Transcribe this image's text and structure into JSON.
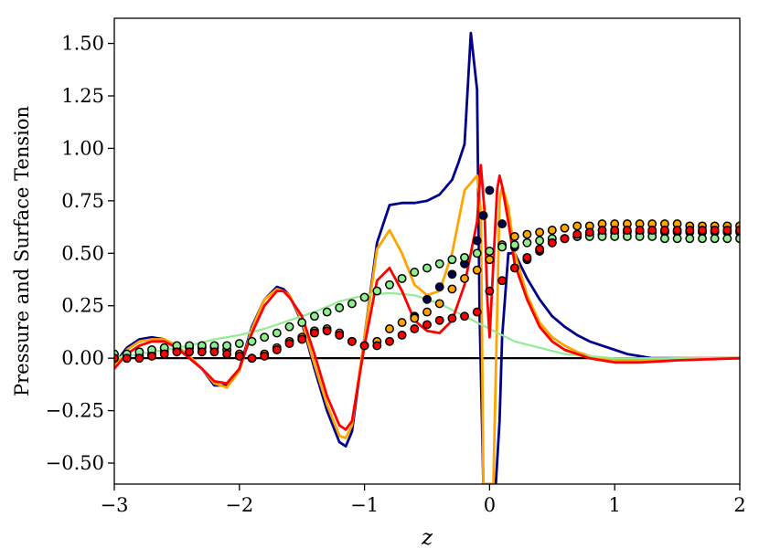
{
  "chart_data": {
    "type": "line",
    "xlabel": "z",
    "ylabel": "Pressure and Surface Tension",
    "xlim": [
      -3,
      2
    ],
    "ylim": [
      -0.6,
      1.62
    ],
    "xticks": [
      -3,
      -2,
      -1,
      0,
      1,
      2
    ],
    "xtick_labels": [
      "−3",
      "−2",
      "−1",
      "0",
      "1",
      "2"
    ],
    "yticks": [
      -0.5,
      -0.25,
      0,
      0.25,
      0.5,
      0.75,
      1.0,
      1.25,
      1.5
    ],
    "ytick_labels": [
      "−0.50",
      "−0.25",
      "0.00",
      "0.25",
      "0.50",
      "0.75",
      "1.00",
      "1.25",
      "1.50"
    ],
    "grid": false,
    "zero_line": {
      "y": 0,
      "color": "#000000"
    },
    "line_series": [
      {
        "color": "#00008b",
        "x": [
          -3.0,
          -2.9,
          -2.8,
          -2.7,
          -2.6,
          -2.5,
          -2.4,
          -2.3,
          -2.2,
          -2.1,
          -2.0,
          -1.9,
          -1.8,
          -1.7,
          -1.65,
          -1.6,
          -1.5,
          -1.4,
          -1.3,
          -1.2,
          -1.15,
          -1.1,
          -1.0,
          -0.9,
          -0.8,
          -0.7,
          -0.6,
          -0.5,
          -0.4,
          -0.3,
          -0.25,
          -0.2,
          -0.15,
          -0.1,
          -0.08,
          -0.05,
          0.0,
          0.03,
          0.05,
          0.08,
          0.1,
          0.15,
          0.2,
          0.3,
          0.4,
          0.5,
          0.6,
          0.7,
          0.8,
          0.9,
          1.0,
          1.1,
          1.2,
          1.3,
          1.4,
          1.5,
          2.0
        ],
        "y": [
          -0.03,
          0.05,
          0.09,
          0.1,
          0.09,
          0.05,
          0.0,
          -0.05,
          -0.13,
          -0.13,
          -0.05,
          0.15,
          0.28,
          0.34,
          0.33,
          0.3,
          0.17,
          -0.05,
          -0.25,
          -0.4,
          -0.42,
          -0.35,
          0.1,
          0.55,
          0.73,
          0.74,
          0.74,
          0.75,
          0.78,
          0.85,
          0.93,
          1.02,
          1.55,
          1.28,
          0.2,
          -0.6,
          -0.6,
          -0.6,
          -0.6,
          -0.3,
          0.1,
          0.5,
          0.5,
          0.38,
          0.28,
          0.2,
          0.15,
          0.11,
          0.08,
          0.06,
          0.04,
          0.02,
          0.01,
          0.0,
          0.0,
          0.0,
          0.0
        ]
      },
      {
        "color": "#ffa500",
        "x": [
          -3.0,
          -2.9,
          -2.8,
          -2.7,
          -2.6,
          -2.5,
          -2.4,
          -2.3,
          -2.2,
          -2.1,
          -2.0,
          -1.9,
          -1.8,
          -1.7,
          -1.65,
          -1.6,
          -1.5,
          -1.4,
          -1.3,
          -1.2,
          -1.15,
          -1.1,
          -1.0,
          -0.9,
          -0.8,
          -0.7,
          -0.6,
          -0.5,
          -0.4,
          -0.3,
          -0.2,
          -0.1,
          -0.07,
          -0.05,
          -0.02,
          0.0,
          0.03,
          0.06,
          0.08,
          0.1,
          0.15,
          0.2,
          0.3,
          0.4,
          0.5,
          0.6,
          0.7,
          0.8,
          0.9,
          1.0,
          1.2,
          1.5,
          2.0
        ],
        "y": [
          -0.04,
          0.04,
          0.08,
          0.09,
          0.09,
          0.06,
          0.01,
          -0.05,
          -0.12,
          -0.14,
          -0.06,
          0.14,
          0.28,
          0.33,
          0.32,
          0.3,
          0.18,
          -0.03,
          -0.22,
          -0.37,
          -0.38,
          -0.32,
          0.1,
          0.52,
          0.61,
          0.5,
          0.35,
          0.3,
          0.32,
          0.5,
          0.8,
          0.87,
          0.7,
          -0.6,
          -0.6,
          -0.6,
          -0.6,
          0.2,
          0.75,
          0.82,
          0.72,
          0.5,
          0.3,
          0.17,
          0.1,
          0.06,
          0.03,
          0.01,
          0.0,
          -0.01,
          -0.01,
          0.0,
          0.0
        ]
      },
      {
        "color": "#90ee90",
        "x": [
          -3.0,
          -2.8,
          -2.6,
          -2.4,
          -2.2,
          -2.0,
          -1.8,
          -1.6,
          -1.4,
          -1.2,
          -1.0,
          -0.8,
          -0.6,
          -0.4,
          -0.2,
          0.0,
          0.2,
          0.4,
          0.6,
          0.8,
          1.0,
          1.2,
          1.5,
          2.0
        ],
        "y": [
          0.0,
          0.02,
          0.04,
          0.06,
          0.09,
          0.11,
          0.14,
          0.18,
          0.22,
          0.27,
          0.3,
          0.31,
          0.3,
          0.26,
          0.2,
          0.14,
          0.08,
          0.05,
          0.02,
          0.01,
          0.0,
          0.0,
          0.0,
          0.0
        ]
      },
      {
        "color": "#ff0000",
        "x": [
          -3.0,
          -2.9,
          -2.8,
          -2.7,
          -2.6,
          -2.5,
          -2.4,
          -2.3,
          -2.2,
          -2.1,
          -2.0,
          -1.9,
          -1.8,
          -1.7,
          -1.65,
          -1.6,
          -1.5,
          -1.4,
          -1.3,
          -1.2,
          -1.15,
          -1.1,
          -1.0,
          -0.9,
          -0.8,
          -0.7,
          -0.6,
          -0.5,
          -0.4,
          -0.3,
          -0.2,
          -0.1,
          -0.07,
          -0.04,
          -0.02,
          0.0,
          0.03,
          0.06,
          0.08,
          0.1,
          0.15,
          0.2,
          0.3,
          0.4,
          0.5,
          0.6,
          0.7,
          0.8,
          0.9,
          1.0,
          1.2,
          1.5,
          2.0
        ],
        "y": [
          -0.05,
          0.02,
          0.06,
          0.08,
          0.08,
          0.05,
          0.0,
          -0.05,
          -0.11,
          -0.12,
          -0.05,
          0.12,
          0.25,
          0.32,
          0.32,
          0.29,
          0.2,
          0.02,
          -0.18,
          -0.32,
          -0.34,
          -0.3,
          0.06,
          0.37,
          0.43,
          0.32,
          0.18,
          0.13,
          0.12,
          0.18,
          0.35,
          0.65,
          0.92,
          0.7,
          0.3,
          0.1,
          0.45,
          0.8,
          0.87,
          0.82,
          0.65,
          0.45,
          0.28,
          0.15,
          0.08,
          0.04,
          0.02,
          0.0,
          -0.01,
          -0.02,
          -0.02,
          -0.01,
          0.0
        ]
      }
    ],
    "scatter_series": [
      {
        "color": "#00004d",
        "x": [
          -0.6,
          -0.5,
          -0.4,
          -0.3,
          -0.2,
          -0.1,
          -0.05,
          0.0,
          0.1,
          0.2,
          0.3,
          0.4,
          0.5,
          0.6,
          0.7,
          0.8,
          0.9,
          1.0,
          1.1,
          1.2,
          1.3,
          1.4,
          1.5,
          1.6,
          1.7,
          1.8,
          1.9,
          2.0
        ],
        "y": [
          0.2,
          0.28,
          0.34,
          0.4,
          0.45,
          0.56,
          0.68,
          0.8,
          0.64,
          0.53,
          0.47,
          0.51,
          0.55,
          0.57,
          0.58,
          0.59,
          0.59,
          0.6,
          0.6,
          0.6,
          0.6,
          0.6,
          0.6,
          0.6,
          0.6,
          0.6,
          0.6,
          0.6
        ]
      },
      {
        "color": "#ffa500",
        "x": [
          -3.0,
          -2.9,
          -2.8,
          -2.7,
          -2.6,
          -2.5,
          -2.4,
          -2.3,
          -2.2,
          -2.1,
          -2.0,
          -1.9,
          -1.8,
          -1.7,
          -1.6,
          -1.5,
          -1.4,
          -1.3,
          -1.2,
          -1.1,
          -1.0,
          -0.9,
          -0.8,
          -0.7,
          -0.6,
          -0.5,
          -0.4,
          -0.3,
          -0.2,
          -0.1,
          0.0,
          0.1,
          0.2,
          0.3,
          0.4,
          0.5,
          0.6,
          0.7,
          0.8,
          0.9,
          1.0,
          1.1,
          1.2,
          1.3,
          1.4,
          1.5,
          1.6,
          1.7,
          1.8,
          1.9,
          2.0
        ],
        "y": [
          0.0,
          0.0,
          0.01,
          0.02,
          0.03,
          0.04,
          0.05,
          0.05,
          0.05,
          0.04,
          0.02,
          0.0,
          0.02,
          0.05,
          0.08,
          0.1,
          0.13,
          0.14,
          0.12,
          0.08,
          0.06,
          0.08,
          0.14,
          0.17,
          0.19,
          0.22,
          0.26,
          0.33,
          0.38,
          0.42,
          0.47,
          0.54,
          0.58,
          0.59,
          0.6,
          0.61,
          0.62,
          0.63,
          0.63,
          0.64,
          0.64,
          0.64,
          0.64,
          0.64,
          0.64,
          0.64,
          0.63,
          0.63,
          0.63,
          0.63,
          0.63
        ]
      },
      {
        "color": "#90ee90",
        "x": [
          -3.0,
          -2.9,
          -2.8,
          -2.7,
          -2.6,
          -2.5,
          -2.4,
          -2.3,
          -2.2,
          -2.1,
          -2.0,
          -1.9,
          -1.8,
          -1.7,
          -1.6,
          -1.5,
          -1.4,
          -1.3,
          -1.2,
          -1.1,
          -1.0,
          -0.9,
          -0.8,
          -0.7,
          -0.6,
          -0.5,
          -0.4,
          -0.3,
          -0.2,
          -0.1,
          0.0,
          0.1,
          0.2,
          0.3,
          0.4,
          0.5,
          0.6,
          0.7,
          0.8,
          0.9,
          1.0,
          1.1,
          1.2,
          1.3,
          1.4,
          1.5,
          1.6,
          1.7,
          1.8,
          1.9,
          2.0
        ],
        "y": [
          0.02,
          0.02,
          0.03,
          0.04,
          0.05,
          0.06,
          0.06,
          0.06,
          0.06,
          0.06,
          0.07,
          0.08,
          0.1,
          0.12,
          0.15,
          0.17,
          0.2,
          0.22,
          0.24,
          0.26,
          0.29,
          0.32,
          0.35,
          0.38,
          0.41,
          0.43,
          0.45,
          0.47,
          0.48,
          0.5,
          0.51,
          0.53,
          0.54,
          0.55,
          0.56,
          0.57,
          0.57,
          0.58,
          0.58,
          0.58,
          0.58,
          0.58,
          0.58,
          0.58,
          0.57,
          0.57,
          0.57,
          0.57,
          0.57,
          0.57,
          0.57
        ]
      },
      {
        "color": "#ff0000",
        "x": [
          -3.0,
          -2.9,
          -2.8,
          -2.7,
          -2.6,
          -2.5,
          -2.4,
          -2.3,
          -2.2,
          -2.1,
          -2.0,
          -1.9,
          -1.8,
          -1.7,
          -1.6,
          -1.5,
          -1.4,
          -1.3,
          -1.2,
          -1.1,
          -1.0,
          -0.9,
          -0.8,
          -0.7,
          -0.6,
          -0.5,
          -0.4,
          -0.3,
          -0.2,
          -0.1,
          0.0,
          0.1,
          0.2,
          0.3,
          0.4,
          0.5,
          0.6,
          0.7,
          0.8,
          0.9,
          1.0,
          1.1,
          1.2,
          1.3,
          1.4,
          1.5,
          1.6,
          1.7,
          1.8,
          1.9,
          2.0
        ],
        "y": [
          0.0,
          0.0,
          0.0,
          0.01,
          0.02,
          0.03,
          0.03,
          0.03,
          0.03,
          0.02,
          0.01,
          0.0,
          0.01,
          0.04,
          0.07,
          0.09,
          0.12,
          0.13,
          0.11,
          0.08,
          0.06,
          0.06,
          0.08,
          0.11,
          0.14,
          0.16,
          0.18,
          0.19,
          0.2,
          0.22,
          0.32,
          0.37,
          0.43,
          0.48,
          0.52,
          0.55,
          0.57,
          0.59,
          0.6,
          0.61,
          0.61,
          0.61,
          0.61,
          0.61,
          0.61,
          0.61,
          0.61,
          0.61,
          0.61,
          0.61,
          0.61
        ]
      }
    ]
  }
}
